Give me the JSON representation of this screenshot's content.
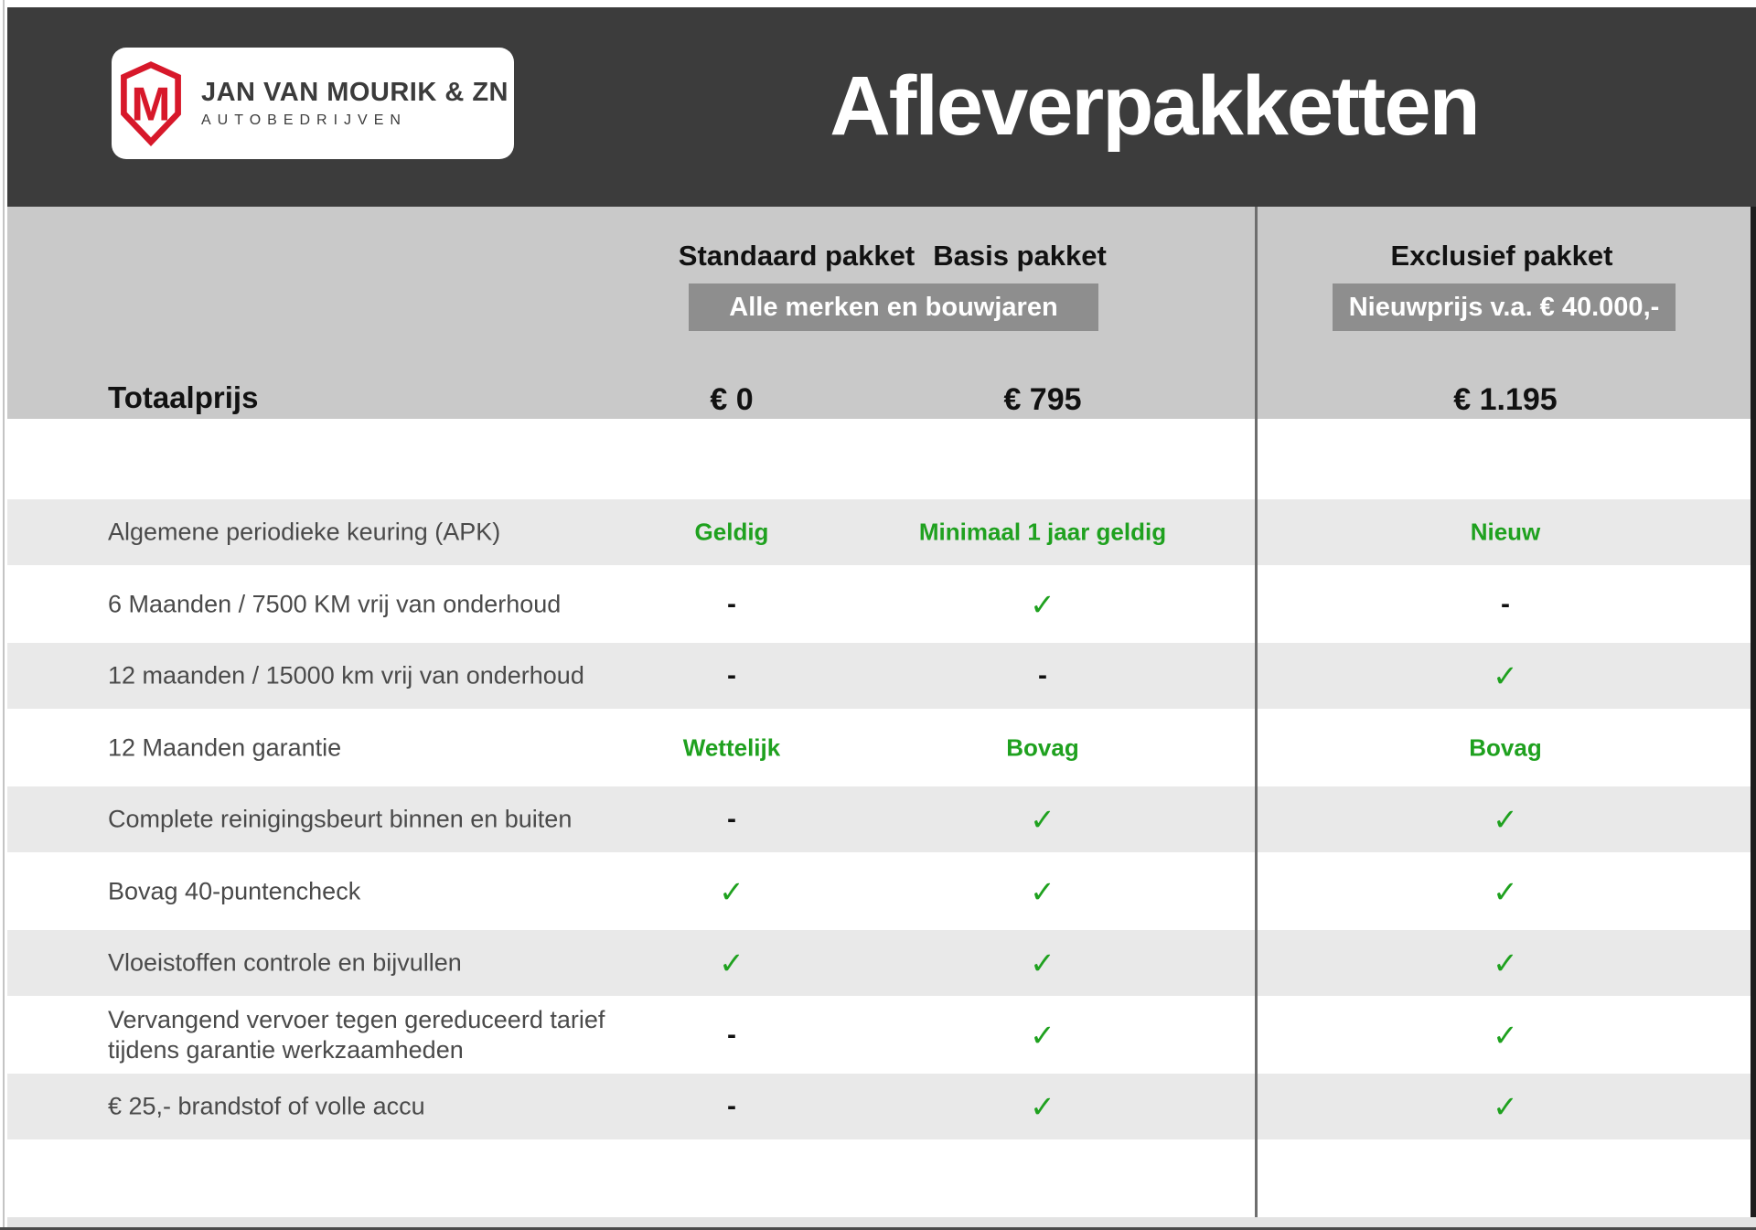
{
  "header": {
    "title": "Afleverpakketten"
  },
  "brand": {
    "monogram": "M",
    "line1": "JAN VAN MOURIK & ZN",
    "line2": "AUTOBEDRIJVEN"
  },
  "packages": [
    {
      "name": "Standaard pakket",
      "price": "€ 0"
    },
    {
      "name": "Basis pakket",
      "price": "€ 795"
    },
    {
      "name": "Exclusief pakket",
      "price": "€ 1.195"
    }
  ],
  "badges": [
    {
      "label": "Alle merken en bouwjaren"
    },
    {
      "label": "Nieuwprijs v.a. € 40.000,-"
    }
  ],
  "totals": {
    "label": "Totaalprijs"
  },
  "rows": [
    {
      "label": "Algemene periodieke keuring (APK)",
      "values": [
        "Geldig",
        "Minimaal 1 jaar geldig",
        "Nieuw"
      ]
    },
    {
      "label": "6 Maanden / 7500 KM vrij van onderhoud",
      "values": [
        "dash",
        "check",
        "dash"
      ]
    },
    {
      "label": "12 maanden / 15000 km vrij van onderhoud",
      "values": [
        "dash",
        "dash",
        "check"
      ]
    },
    {
      "label": "12 Maanden  garantie",
      "values": [
        "Wettelijk",
        "Bovag",
        "Bovag"
      ]
    },
    {
      "label": "Complete reinigingsbeurt binnen en buiten",
      "values": [
        "dash",
        "check",
        "check"
      ]
    },
    {
      "label": "Bovag 40-puntencheck",
      "values": [
        "check",
        "check",
        "check"
      ]
    },
    {
      "label": "Vloeistoffen controle en bijvullen",
      "values": [
        "check",
        "check",
        "check"
      ]
    },
    {
      "label": "Vervangend vervoer tegen gereduceerd tarief\ntijdens garantie werkzaamheden",
      "values": [
        "dash",
        "check",
        "check"
      ]
    },
    {
      "label": "€ 25,- brandstof of  volle accu",
      "values": [
        "dash",
        "check",
        "check"
      ]
    }
  ],
  "glyphs": {
    "check": "✓",
    "dash": "-"
  },
  "colors": {
    "accent_green": "#1fa11f",
    "brand_red": "#d7182a",
    "header_background": "#3c3c3c",
    "band_background": "#c9c9c9",
    "badge_background": "#8e8e8e",
    "stripe_background": "#e9e9e9"
  }
}
